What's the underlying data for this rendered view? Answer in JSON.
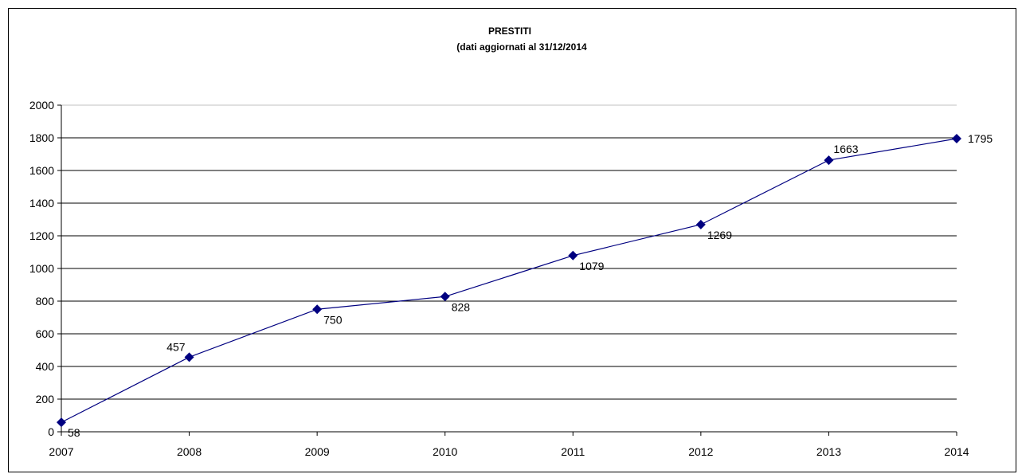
{
  "chart_data": {
    "type": "line",
    "title": "PRESTITI",
    "subtitle": "(dati aggiornati al 31/12/2014",
    "xlabel": "",
    "ylabel": "",
    "categories": [
      "2007",
      "2008",
      "2009",
      "2010",
      "2011",
      "2012",
      "2013",
      "2014"
    ],
    "series": [
      {
        "values": [
          58,
          457,
          750,
          828,
          1079,
          1269,
          1663,
          1795
        ]
      }
    ],
    "ylim": [
      0,
      2000
    ],
    "yticks": [
      "0",
      "200",
      "400",
      "600",
      "800",
      "1000",
      "1200",
      "1400",
      "1600",
      "1800",
      "2000"
    ],
    "grid": true,
    "legend": "none",
    "data_labels": true,
    "series_color": "#000080",
    "grid_color": "#000000",
    "top_grid_color": "#c0c0c0"
  }
}
